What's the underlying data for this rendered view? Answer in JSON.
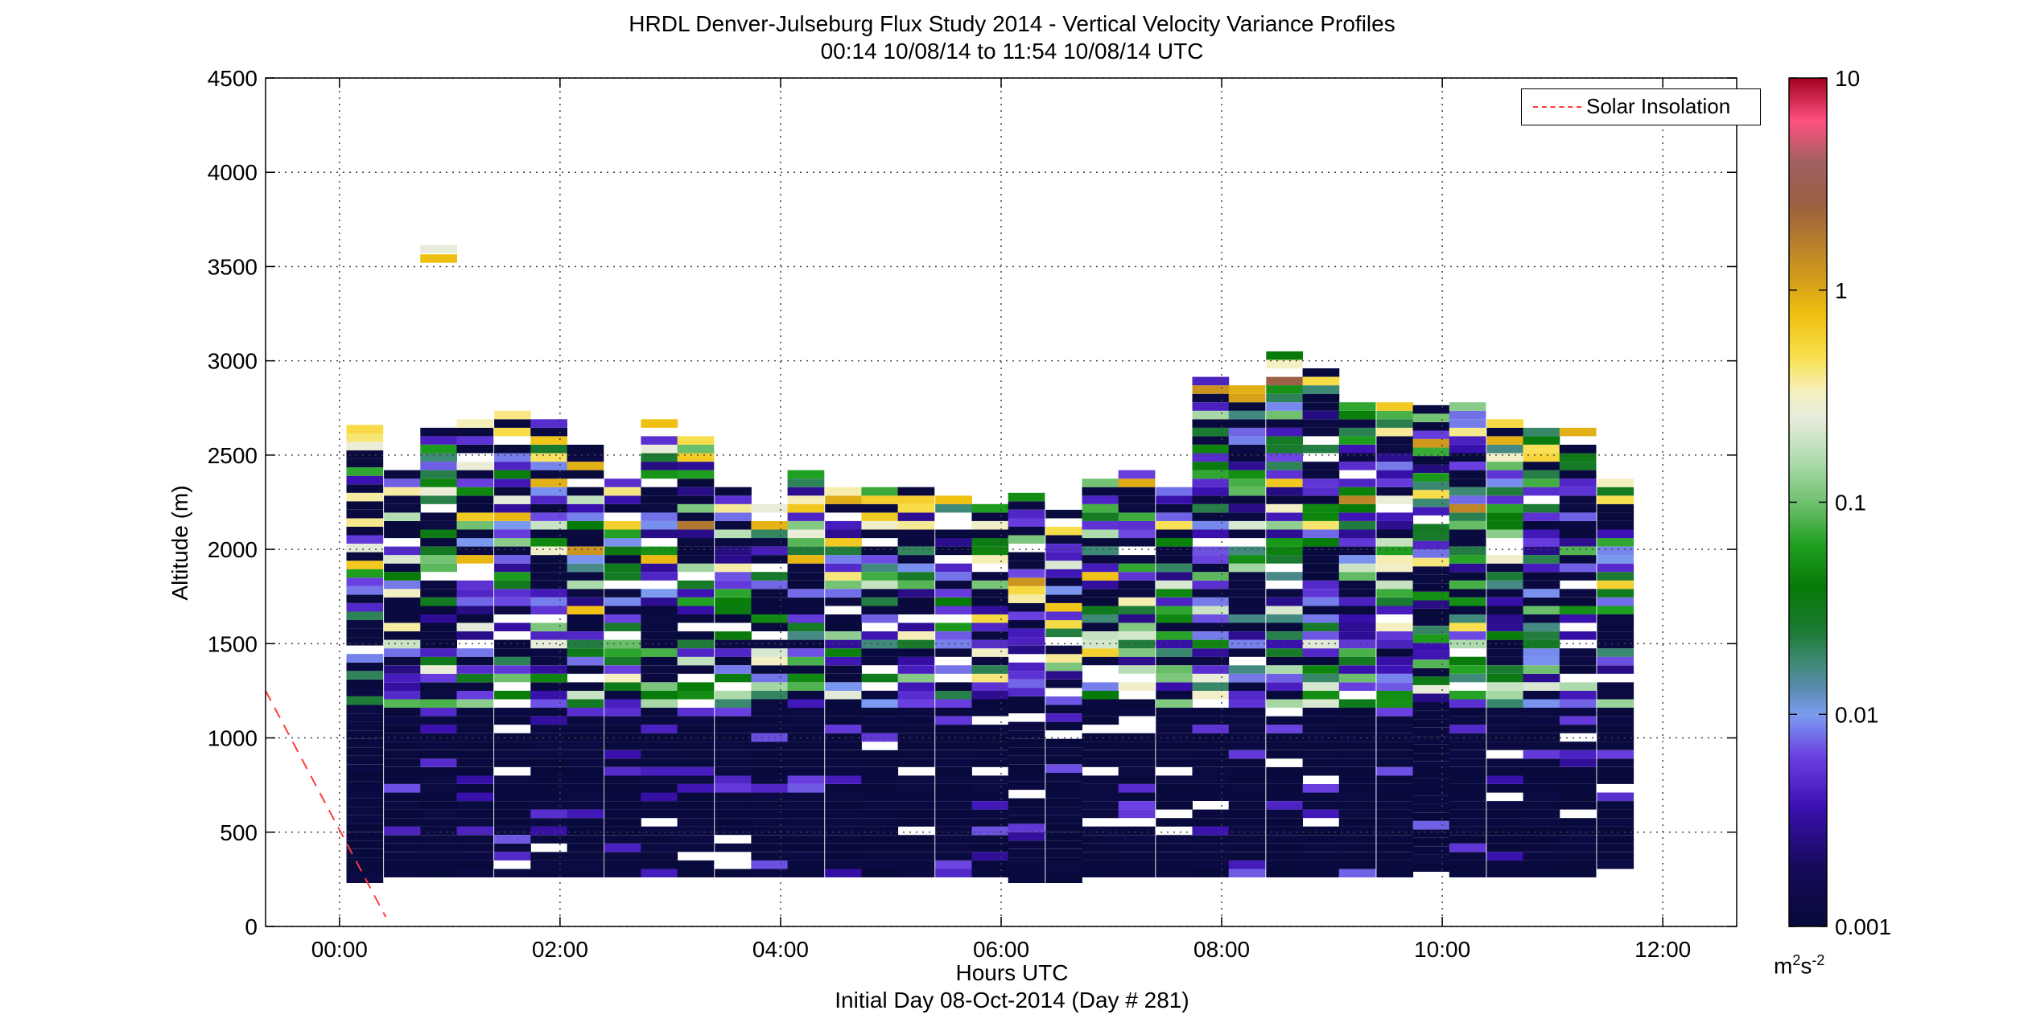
{
  "chart_data": {
    "type": "heatmap",
    "title": "HRDL Denver-Julseburg Flux Study 2014 - Vertical Velocity Variance Profiles",
    "subtitle": "00:14 10/08/14 to 11:54 10/08/14  UTC",
    "xlabel": "Hours UTC",
    "xlabel2": "Initial Day 08-Oct-2014 (Day # 281)",
    "ylabel": "Altitude (m)",
    "xlim": [
      -0.67,
      12.67
    ],
    "ylim": [
      0,
      4500
    ],
    "x_ticks": [
      0,
      2,
      4,
      6,
      8,
      10,
      12
    ],
    "x_tick_labels": [
      "00:00",
      "02:00",
      "04:00",
      "06:00",
      "08:00",
      "10:00",
      "12:00"
    ],
    "y_ticks": [
      0,
      500,
      1000,
      1500,
      2000,
      2500,
      3000,
      3500,
      4000,
      4500
    ],
    "y_tick_labels": [
      "0",
      "500",
      "1000",
      "1500",
      "2000",
      "2500",
      "3000",
      "3500",
      "4000",
      "4500"
    ],
    "grid": true,
    "legend": {
      "position": "top-right",
      "entries": [
        {
          "name": "Solar Insolation",
          "style": "dashed",
          "color": "#ff3b3b"
        }
      ]
    },
    "colorbar": {
      "scale": "log",
      "range": [
        0.001,
        10
      ],
      "ticks": [
        0.001,
        0.01,
        0.1,
        1,
        10
      ],
      "tick_labels": [
        "0.001",
        "0.01",
        "0.1",
        "1",
        "10"
      ],
      "unit_base": "m",
      "unit_exp1": "2",
      "unit_mid": "s",
      "unit_exp2": "-2",
      "stops": [
        [
          0.0,
          "#070a3a"
        ],
        [
          0.07,
          "#160a5a"
        ],
        [
          0.14,
          "#3a10b0"
        ],
        [
          0.2,
          "#6a40e0"
        ],
        [
          0.25,
          "#7b9cf0"
        ],
        [
          0.28,
          "#5a8ab0"
        ],
        [
          0.31,
          "#3f8a78"
        ],
        [
          0.35,
          "#1a7a30"
        ],
        [
          0.4,
          "#067a06"
        ],
        [
          0.45,
          "#20a020"
        ],
        [
          0.5,
          "#70c070"
        ],
        [
          0.55,
          "#b0dcb0"
        ],
        [
          0.6,
          "#e8ecdc"
        ],
        [
          0.63,
          "#f5f0c0"
        ],
        [
          0.67,
          "#f8e050"
        ],
        [
          0.72,
          "#f0c010"
        ],
        [
          0.78,
          "#c89020"
        ],
        [
          0.85,
          "#9a6040"
        ],
        [
          0.9,
          "#a06060"
        ],
        [
          0.95,
          "#ff5080"
        ],
        [
          1.0,
          "#a00020"
        ]
      ]
    },
    "solar_insolation": {
      "x": [
        -0.67,
        0.42
      ],
      "y": [
        1250,
        50
      ]
    },
    "profiles": [
      {
        "t": 0.23,
        "top": 2640,
        "bottom": 230
      },
      {
        "t": 0.57,
        "top": 2420,
        "bottom": 260
      },
      {
        "t": 0.9,
        "top": 2630,
        "bottom": 260
      },
      {
        "t": 1.23,
        "top": 2680,
        "bottom": 260
      },
      {
        "t": 1.57,
        "top": 2720,
        "bottom": 260
      },
      {
        "t": 1.9,
        "top": 2660,
        "bottom": 260
      },
      {
        "t": 2.23,
        "top": 2550,
        "bottom": 260
      },
      {
        "t": 2.57,
        "top": 2390,
        "bottom": 260
      },
      {
        "t": 2.9,
        "top": 2680,
        "bottom": 260
      },
      {
        "t": 3.23,
        "top": 2560,
        "bottom": 260
      },
      {
        "t": 3.57,
        "top": 2300,
        "bottom": 260
      },
      {
        "t": 3.9,
        "top": 2210,
        "bottom": 260
      },
      {
        "t": 4.23,
        "top": 2380,
        "bottom": 260
      },
      {
        "t": 4.57,
        "top": 2310,
        "bottom": 260
      },
      {
        "t": 4.9,
        "top": 2290,
        "bottom": 260
      },
      {
        "t": 5.23,
        "top": 2330,
        "bottom": 260
      },
      {
        "t": 5.57,
        "top": 2280,
        "bottom": 260
      },
      {
        "t": 5.9,
        "top": 2230,
        "bottom": 260
      },
      {
        "t": 6.23,
        "top": 2260,
        "bottom": 230
      },
      {
        "t": 6.57,
        "top": 2200,
        "bottom": 230
      },
      {
        "t": 6.9,
        "top": 2350,
        "bottom": 260
      },
      {
        "t": 7.23,
        "top": 2420,
        "bottom": 260
      },
      {
        "t": 7.57,
        "top": 2300,
        "bottom": 260
      },
      {
        "t": 7.9,
        "top": 2910,
        "bottom": 260
      },
      {
        "t": 8.23,
        "top": 2850,
        "bottom": 260
      },
      {
        "t": 8.57,
        "top": 3020,
        "bottom": 260
      },
      {
        "t": 8.9,
        "top": 2930,
        "bottom": 260
      },
      {
        "t": 9.23,
        "top": 2780,
        "bottom": 260
      },
      {
        "t": 9.57,
        "top": 2760,
        "bottom": 260
      },
      {
        "t": 9.9,
        "top": 2760,
        "bottom": 290
      },
      {
        "t": 10.23,
        "top": 2740,
        "bottom": 260
      },
      {
        "t": 10.57,
        "top": 2660,
        "bottom": 260
      },
      {
        "t": 10.9,
        "top": 2620,
        "bottom": 260
      },
      {
        "t": 11.23,
        "top": 2620,
        "bottom": 260
      },
      {
        "t": 11.57,
        "top": 2360,
        "bottom": 260
      }
    ],
    "isolated_cells": [
      {
        "t": 0.9,
        "y": 3520,
        "level": 0.72
      },
      {
        "t": 0.9,
        "y": 3570,
        "level": 0.6
      }
    ]
  }
}
